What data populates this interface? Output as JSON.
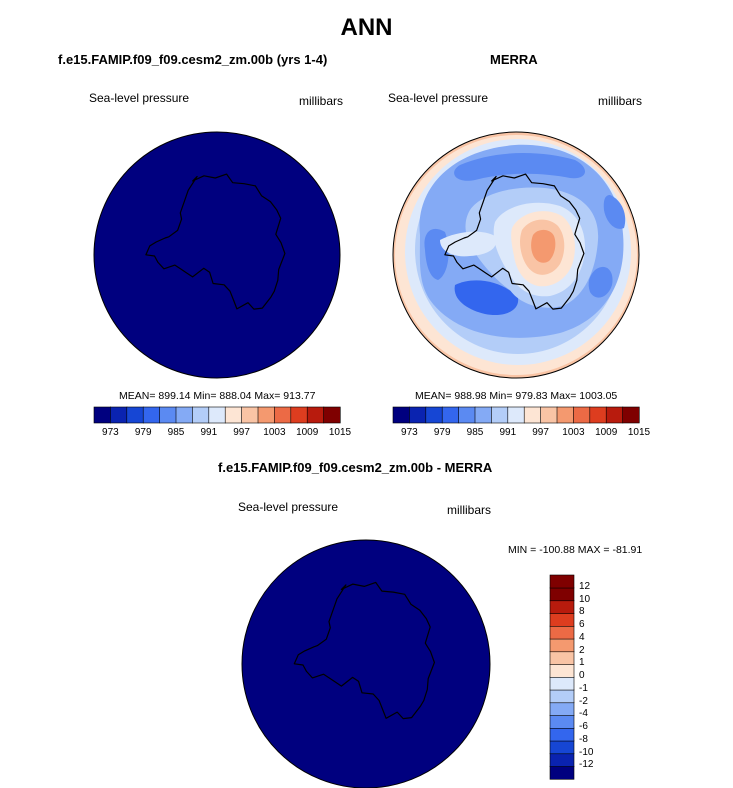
{
  "title": "ANN",
  "panels": [
    {
      "title": "f.e15.FAMIP.f09_f09.cesm2_zm.00b (yrs 1-4)",
      "variable": "Sea-level pressure",
      "units": "millibars",
      "stats": {
        "mean": 899.14,
        "min": 888.04,
        "max": 913.77
      },
      "stats_text": "MEAN= 899.14  Min= 888.04  Max= 913.77",
      "fill": "uniform-darkest-blue"
    },
    {
      "title": "MERRA",
      "variable": "Sea-level pressure",
      "units": "millibars",
      "stats": {
        "mean": 988.98,
        "min": 979.83,
        "max": 1003.05
      },
      "stats_text": "MEAN= 988.98  Min= 979.83  Max= 1003.05",
      "fill": "contoured-field"
    },
    {
      "title": "f.e15.FAMIP.f09_f09.cesm2_zm.00b - MERRA",
      "variable": "Sea-level pressure",
      "units": "millibars",
      "stats": {
        "min": -100.88,
        "max": -81.91
      },
      "stats_text": "MIN = -100.88 MAX = -81.91",
      "fill": "uniform-darkest-blue"
    }
  ],
  "colorbar_main": {
    "levels": [
      973,
      976,
      979,
      982,
      985,
      988,
      991,
      994,
      997,
      1000,
      1003,
      1006,
      1009,
      1012,
      1015
    ],
    "tick_labels": [
      "973",
      "979",
      "985",
      "991",
      "997",
      "1003",
      "1009",
      "1015"
    ],
    "colors": [
      "#00007f",
      "#0a23b0",
      "#1646d4",
      "#3366ee",
      "#5b8af2",
      "#84aaf5",
      "#b3cdf8",
      "#dde9fb",
      "#fde5d4",
      "#f9c4a5",
      "#f4996f",
      "#ec6a45",
      "#dd3d1f",
      "#b81b0d",
      "#7f0000"
    ]
  },
  "colorbar_diff": {
    "levels": [
      -12,
      -10,
      -8,
      -6,
      -4,
      -2,
      -1,
      0,
      1,
      2,
      4,
      6,
      8,
      10,
      12
    ],
    "tick_labels": [
      "-12",
      "-10",
      "-8",
      "-6",
      "-4",
      "-2",
      "-1",
      "0",
      "1",
      "2",
      "4",
      "6",
      "8",
      "10",
      "12"
    ],
    "colors": [
      "#00007f",
      "#0a23b0",
      "#1646d4",
      "#3366ee",
      "#5b8af2",
      "#84aaf5",
      "#b3cdf8",
      "#dde9fb",
      "#fde5d4",
      "#f9c4a5",
      "#f4996f",
      "#ec6a45",
      "#dd3d1f",
      "#b81b0d",
      "#7f0000",
      "#7f0000"
    ]
  },
  "colors": {
    "map_uniform": "#00007f",
    "coast": "#000000"
  }
}
